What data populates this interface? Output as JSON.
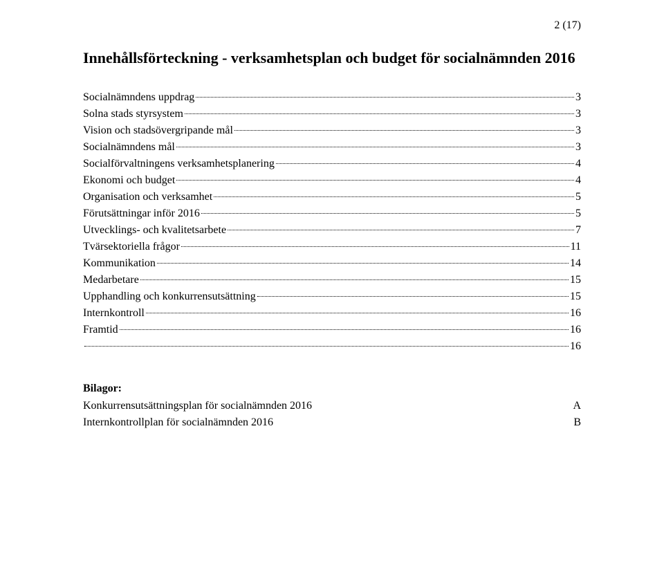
{
  "page_number": "2 (17)",
  "title": "Innehållsförteckning - verksamhetsplan och budget för socialnämnden 2016",
  "toc": [
    {
      "label": "Socialnämndens uppdrag",
      "page": "3"
    },
    {
      "label": "Solna stads styrsystem",
      "page": "3"
    },
    {
      "label": "Vision och stadsövergripande mål",
      "page": "3"
    },
    {
      "label": "Socialnämndens mål",
      "page": "3"
    },
    {
      "label": "Socialförvaltningens verksamhetsplanering",
      "page": "4"
    },
    {
      "label": "Ekonomi och budget",
      "page": "4"
    },
    {
      "label": "Organisation och verksamhet",
      "page": "5"
    },
    {
      "label": "Förutsättningar inför 2016",
      "page": "5"
    },
    {
      "label": "Utvecklings- och kvalitetsarbete",
      "page": "7"
    },
    {
      "label": "Tvärsektoriella frågor",
      "page": "11"
    },
    {
      "label": "Kommunikation",
      "page": "14"
    },
    {
      "label": "Medarbetare",
      "page": "15"
    },
    {
      "label": "Upphandling och konkurrensutsättning",
      "page": "15"
    },
    {
      "label": "Internkontroll",
      "page": "16"
    },
    {
      "label": "Framtid",
      "page": "16"
    },
    {
      "label": "",
      "page": "16"
    }
  ],
  "bilagor": {
    "heading": "Bilagor:",
    "items": [
      {
        "label": "Konkurrensutsättningsplan för socialnämnden 2016",
        "marker": "A"
      },
      {
        "label": "Internkontrollplan för socialnämnden 2016",
        "marker": "B"
      }
    ]
  },
  "style": {
    "background_color": "#ffffff",
    "text_color": "#000000",
    "title_fontsize": 22,
    "body_fontsize": 16,
    "font_family": "Times New Roman"
  }
}
